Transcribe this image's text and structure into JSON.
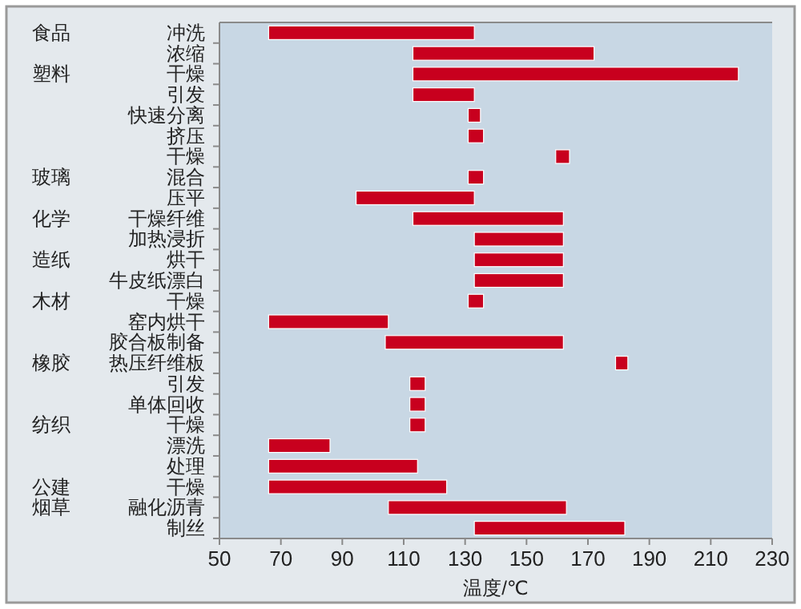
{
  "chart_data": {
    "type": "bar",
    "orientation": "horizontal",
    "xlabel": "温度/℃",
    "categories": [
      "冲洗",
      "浓缩",
      "干燥",
      "引发",
      "快速分离",
      "挤压",
      "干燥",
      "混合",
      "压平",
      "干燥纤维",
      "加热浸折",
      "烘干",
      "牛皮纸漂白",
      "干燥",
      "窑内烘干",
      "胶合板制备",
      "热压纤维板",
      "引发",
      "单体回收",
      "干燥",
      "漂洗",
      "处理",
      "干燥",
      "融化沥青",
      "制丝"
    ],
    "base": [
      66,
      113,
      113,
      113,
      131,
      131,
      159.5,
      131,
      94.5,
      113,
      133,
      133,
      133,
      131,
      66,
      104,
      179,
      112,
      112,
      112,
      66,
      66,
      66,
      105,
      133
    ],
    "values": [
      67,
      59,
      106,
      20,
      4,
      5,
      4.5,
      5,
      38.5,
      49,
      29,
      29,
      29,
      5,
      39,
      58,
      4,
      5,
      5,
      5,
      20,
      48.5,
      58,
      58,
      49
    ],
    "color": "#c8001e",
    "xlim": [
      50,
      230
    ],
    "xticks": [
      50,
      70,
      90,
      110,
      130,
      150,
      170,
      190,
      210,
      230
    ],
    "grid": false,
    "annotations": [
      "食品",
      "塑料",
      "玻璃",
      "化学",
      "造纸",
      "木材",
      "橡胶",
      "纺织",
      "公建",
      "烟草"
    ]
  }
}
